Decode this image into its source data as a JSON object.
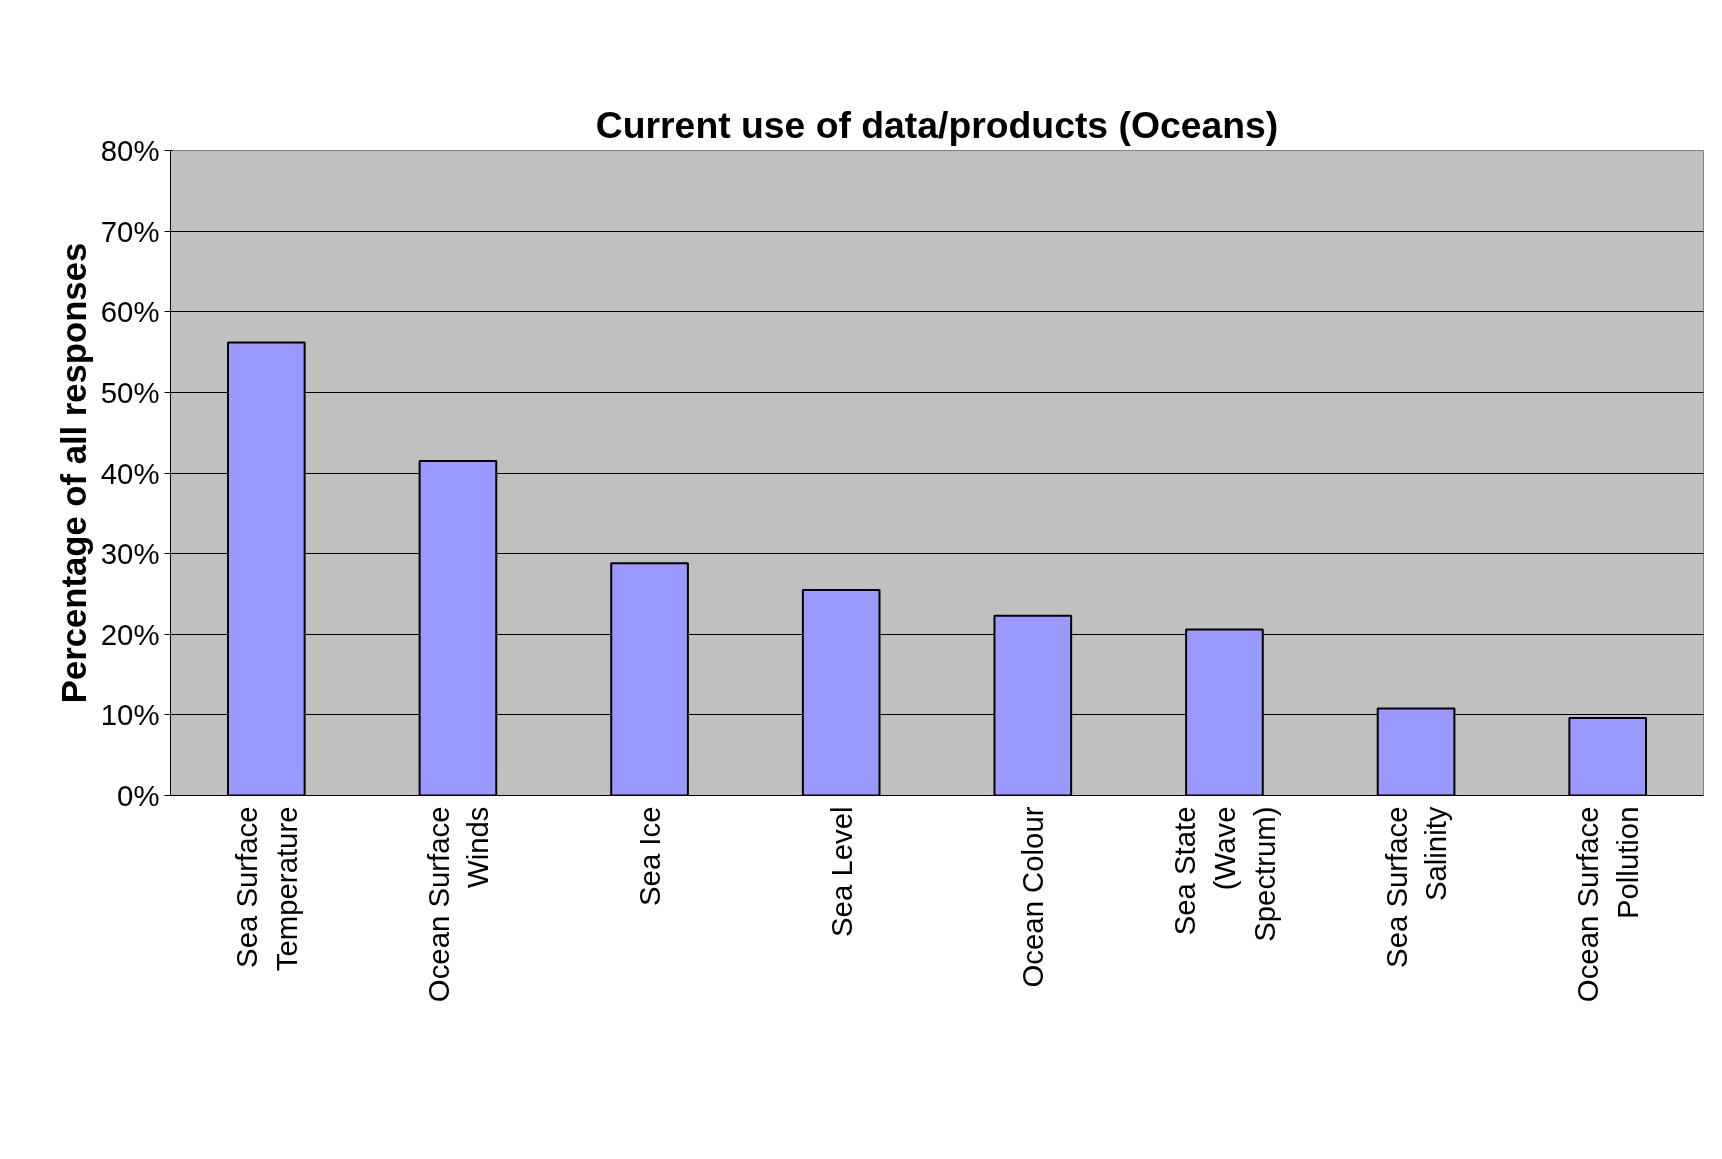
{
  "chart_data": {
    "type": "bar",
    "title": "Current use of data/products (Oceans)",
    "ylabel": "Percentage of all responses",
    "categories": [
      "Sea Surface Temperature",
      "Ocean Surface Winds",
      "Sea Ice",
      "Sea Level",
      "Ocean Colour",
      "Sea State (Wave Spectrum)",
      "Sea Surface Salinity",
      "Ocean Surface Pollution"
    ],
    "values": [
      56.2,
      41.5,
      28.8,
      25.5,
      22.3,
      20.6,
      10.8,
      9.6
    ],
    "color": "#9999ff",
    "ylim": [
      0,
      80
    ],
    "yticks": [
      {
        "value": 0,
        "label": "0%"
      },
      {
        "value": 10,
        "label": "10%"
      },
      {
        "value": 20,
        "label": "20%"
      },
      {
        "value": 30,
        "label": "30%"
      },
      {
        "value": 40,
        "label": "40%"
      },
      {
        "value": 50,
        "label": "50%"
      },
      {
        "value": 60,
        "label": "60%"
      },
      {
        "value": 70,
        "label": "70%"
      },
      {
        "value": 80,
        "label": "80%"
      }
    ],
    "grid": "y"
  }
}
